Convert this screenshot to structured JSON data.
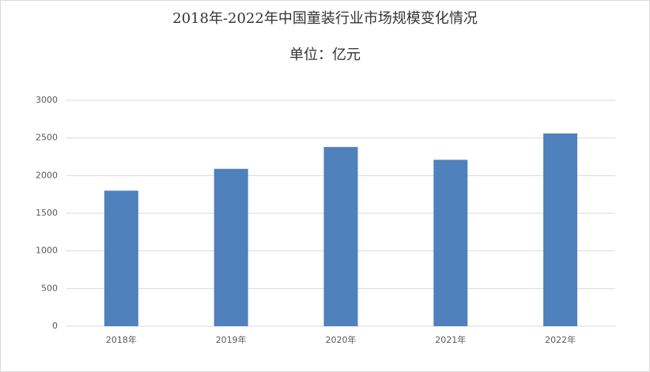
{
  "chart_data": {
    "type": "bar",
    "title": "2018年-2022年中国童装行业市场规模变化情况",
    "subtitle": "单位：亿元",
    "categories": [
      "2018年",
      "2019年",
      "2020年",
      "2021年",
      "2022年"
    ],
    "values": [
      1800,
      2090,
      2380,
      2210,
      2560
    ],
    "color": "#4f81bd",
    "ylim": [
      0,
      3000
    ],
    "yticks": [
      0,
      500,
      1000,
      1500,
      2000,
      2500,
      3000
    ],
    "grid": true
  }
}
